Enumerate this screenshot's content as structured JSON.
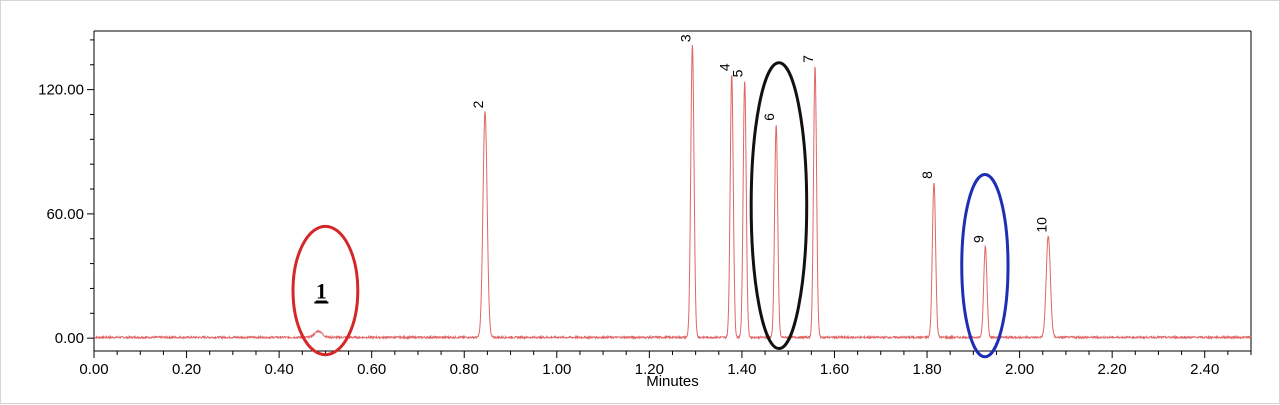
{
  "chart_data": {
    "type": "line",
    "title": "",
    "xlabel": "Minutes",
    "ylabel": "",
    "xlim": [
      0.0,
      2.5
    ],
    "ylim": [
      -6,
      148
    ],
    "x_ticks": [
      "0.00",
      "0.20",
      "0.40",
      "0.60",
      "0.80",
      "1.00",
      "1.20",
      "1.40",
      "1.60",
      "1.80",
      "2.00",
      "2.20",
      "2.40"
    ],
    "x_tick_values": [
      0.0,
      0.2,
      0.4,
      0.6,
      0.8,
      1.0,
      1.2,
      1.4,
      1.6,
      1.8,
      2.0,
      2.2,
      2.4
    ],
    "y_ticks": [
      "0.00",
      "60.00",
      "120.00"
    ],
    "y_tick_values": [
      0,
      60,
      120
    ],
    "grid": false,
    "line_color": "#e06666",
    "peaks": [
      {
        "label": "1",
        "x": 0.485,
        "y": 3,
        "width": 0.008
      },
      {
        "label": "2",
        "x": 0.845,
        "y": 109,
        "width": 0.0045
      },
      {
        "label": "3",
        "x": 1.293,
        "y": 141,
        "width": 0.0035
      },
      {
        "label": "4",
        "x": 1.378,
        "y": 127,
        "width": 0.0033
      },
      {
        "label": "5",
        "x": 1.406,
        "y": 124,
        "width": 0.0033
      },
      {
        "label": "6",
        "x": 1.474,
        "y": 103,
        "width": 0.0033
      },
      {
        "label": "7",
        "x": 1.558,
        "y": 131,
        "width": 0.0033
      },
      {
        "label": "8",
        "x": 1.815,
        "y": 75,
        "width": 0.0035
      },
      {
        "label": "9",
        "x": 1.926,
        "y": 44,
        "width": 0.0035
      },
      {
        "label": "10",
        "x": 2.062,
        "y": 49,
        "width": 0.0045
      }
    ],
    "annotations": [
      {
        "type": "ellipse",
        "color": "#d62728",
        "cx": 0.5,
        "cy": 23,
        "rx": 0.07,
        "ry": 31,
        "label": "1"
      },
      {
        "type": "ellipse",
        "color": "#111111",
        "cx": 1.48,
        "cy": 64,
        "rx": 0.06,
        "ry": 69
      },
      {
        "type": "ellipse",
        "color": "#1f2fb5",
        "cx": 1.925,
        "cy": 35,
        "rx": 0.05,
        "ry": 44
      }
    ]
  }
}
